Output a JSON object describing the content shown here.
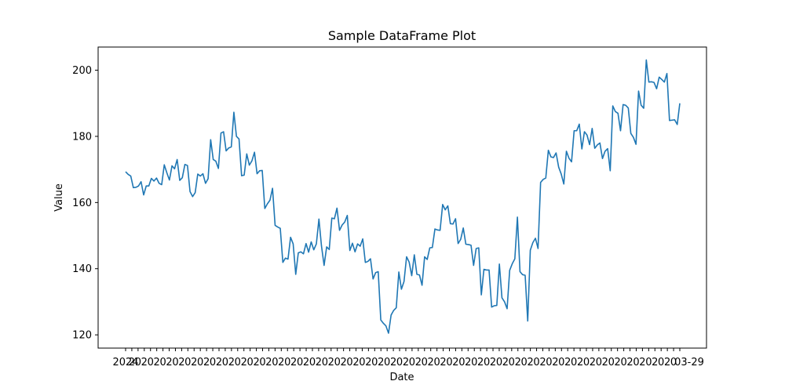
{
  "chart_data": {
    "type": "line",
    "title": "Sample DataFrame Plot",
    "xlabel": "Date",
    "ylabel": "Value",
    "ylim": [
      116,
      207
    ],
    "yticks": [
      120,
      140,
      160,
      180,
      200
    ],
    "ytick_labels": [
      "120",
      "140",
      "160",
      "180",
      "200"
    ],
    "xtick_first_label": "2024",
    "xtick_last_label": "03-29",
    "grid": false,
    "color": "#1f77b4",
    "series": [
      {
        "values": [
          169.3,
          168.5,
          168.0,
          164.5,
          164.6,
          165.0,
          166.3,
          162.3,
          165.0,
          165.0,
          167.3,
          166.5,
          167.4,
          165.8,
          165.4,
          171.4,
          169.0,
          166.8,
          171.1,
          170.2,
          173.0,
          166.7,
          167.5,
          171.5,
          171.2,
          163.3,
          161.8,
          163.0,
          168.6,
          168.0,
          168.7,
          165.8,
          167.2,
          179.0,
          173.0,
          172.5,
          170.3,
          181.0,
          181.4,
          175.6,
          176.5,
          176.8,
          187.3,
          180.0,
          179.2,
          168.1,
          168.3,
          174.7,
          171.3,
          172.6,
          175.2,
          168.7,
          169.6,
          169.7,
          158.2,
          159.6,
          160.7,
          164.3,
          153.1,
          152.6,
          152.2,
          141.9,
          143.2,
          142.9,
          149.5,
          147.5,
          138.3,
          144.8,
          145.1,
          144.5,
          147.6,
          145.0,
          148.1,
          145.7,
          147.5,
          155.0,
          146.8,
          141.0,
          146.6,
          145.8,
          155.3,
          155.1,
          158.3,
          151.6,
          153.2,
          154.1,
          156.1,
          145.5,
          147.7,
          145.1,
          147.5,
          146.8,
          149.0,
          141.9,
          142.2,
          143.0,
          136.9,
          138.8,
          139.1,
          124.5,
          123.5,
          122.7,
          120.5,
          126.0,
          127.4,
          128.2,
          139.0,
          133.8,
          136.1,
          143.6,
          142.0,
          137.9,
          144.2,
          138.3,
          138.1,
          135.0,
          143.6,
          142.8,
          146.3,
          146.4,
          152.0,
          151.7,
          151.6,
          159.4,
          157.8,
          159.0,
          153.6,
          153.5,
          155.1,
          147.6,
          148.9,
          152.3,
          147.4,
          147.3,
          147.1,
          141.0,
          146.1,
          146.3,
          132.1,
          139.8,
          139.6,
          139.6,
          128.4,
          128.8,
          128.9,
          141.4,
          131.2,
          130.0,
          127.9,
          139.5,
          141.5,
          143.0,
          155.6,
          139.1,
          138.2,
          138.0,
          124.2,
          145.6,
          147.9,
          149.2,
          146.1,
          166.1,
          167.0,
          167.4,
          175.8,
          173.8,
          173.6,
          175.0,
          170.7,
          168.6,
          165.6,
          175.5,
          173.4,
          172.3,
          181.7,
          181.7,
          183.7,
          176.2,
          181.4,
          180.4,
          177.5,
          182.4,
          176.4,
          177.4,
          178.0,
          173.3,
          175.5,
          176.3,
          169.6,
          189.2,
          187.5,
          187.0,
          181.7,
          189.6,
          189.4,
          188.6,
          180.9,
          179.7,
          177.6,
          193.7,
          189.4,
          188.5,
          203.1,
          196.4,
          196.5,
          196.3,
          194.4,
          197.9,
          197.2,
          196.4,
          199.0,
          184.8,
          184.9,
          185.0,
          183.6,
          190.0
        ]
      }
    ]
  }
}
